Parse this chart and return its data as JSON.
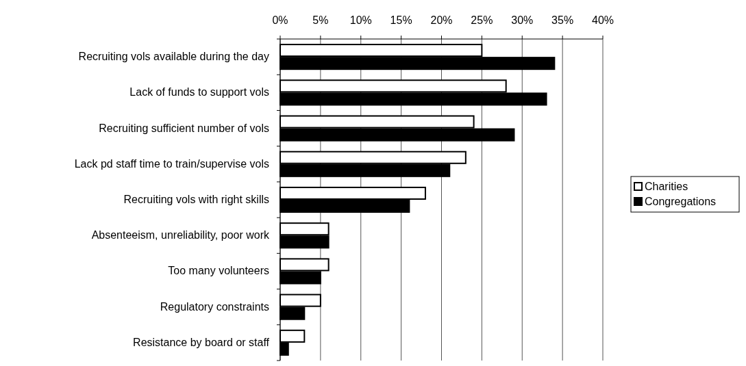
{
  "chart_data": {
    "type": "bar",
    "orientation": "horizontal",
    "categories": [
      "Recruiting vols available during the day",
      "Lack of funds to support vols",
      "Recruiting sufficient number of vols",
      "Lack pd staff time to train/supervise vols",
      "Recruiting vols with right skills",
      "Absenteeism, unreliability, poor work",
      "Too many volunteers",
      "Regulatory constraints",
      "Resistance by board or staff"
    ],
    "series": [
      {
        "name": "Charities",
        "color": "#ffffff",
        "values": [
          25,
          28,
          24,
          23,
          18,
          6,
          6,
          5,
          3
        ]
      },
      {
        "name": "Congregations",
        "color": "#000000",
        "values": [
          34,
          33,
          29,
          21,
          16,
          6,
          5,
          3,
          1
        ]
      }
    ],
    "xlim": [
      0,
      40
    ],
    "xticks": [
      {
        "value": 0,
        "label": "0%"
      },
      {
        "value": 5,
        "label": "5%"
      },
      {
        "value": 10,
        "label": "10%"
      },
      {
        "value": 15,
        "label": "15%"
      },
      {
        "value": 20,
        "label": "20%"
      },
      {
        "value": 25,
        "label": "25%"
      },
      {
        "value": 30,
        "label": "30%"
      },
      {
        "value": 35,
        "label": "35%"
      },
      {
        "value": 40,
        "label": "40%"
      }
    ],
    "grid": "x",
    "legend": "right"
  }
}
